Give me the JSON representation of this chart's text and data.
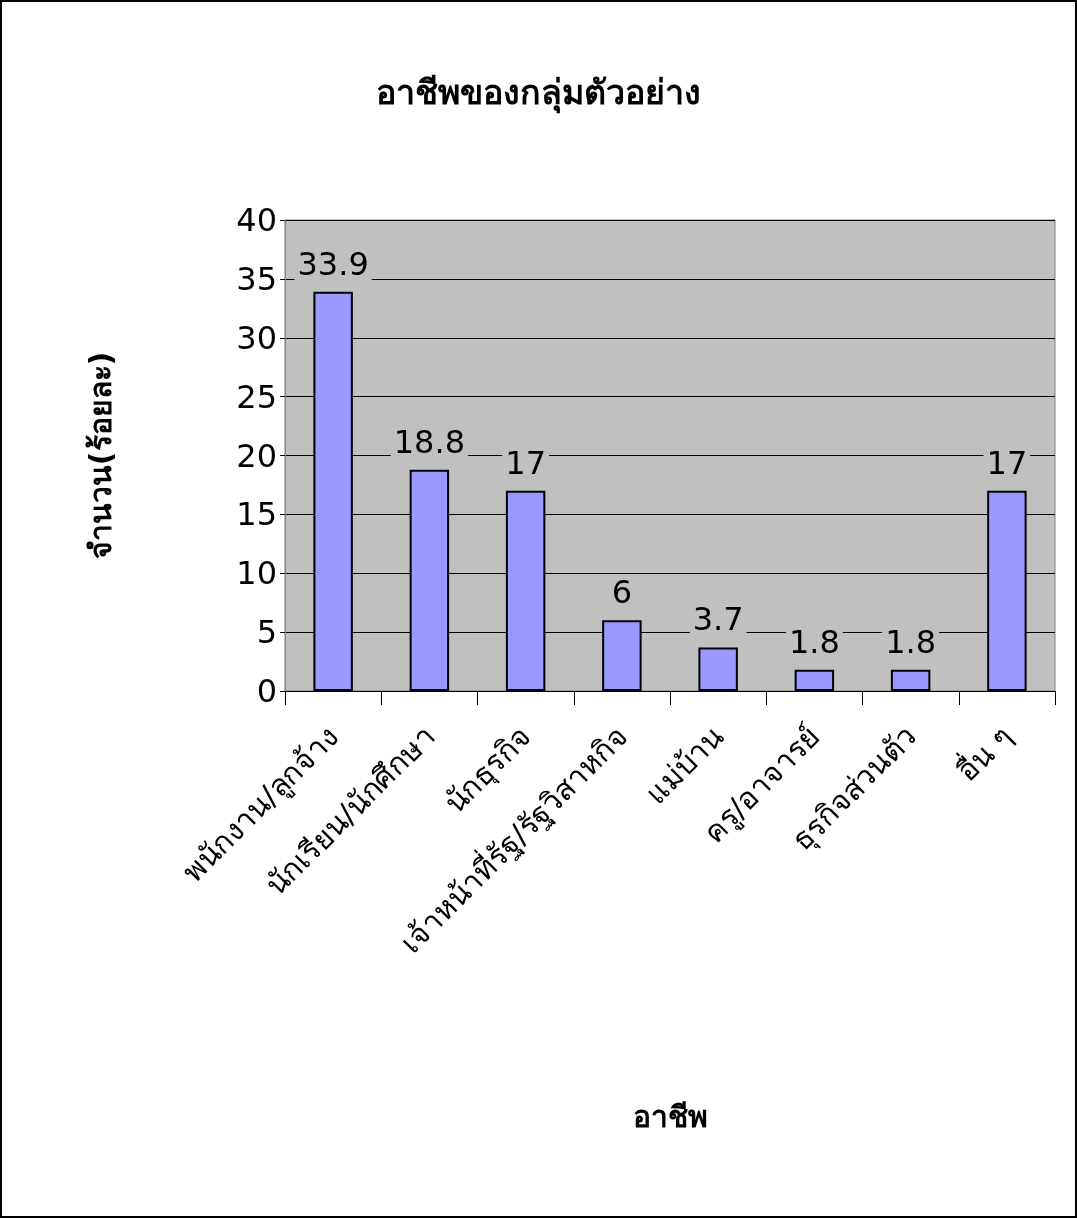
{
  "chart_data": {
    "type": "bar",
    "title": "อาชีพของกลุ่มตัวอย่าง",
    "xlabel": "อาชีพ",
    "ylabel": "จำนวน(ร้อยละ)",
    "categories": [
      "พนักงาน/ลูกจ้าง",
      "นักเรียน/นักศึกษา",
      "นักธุรกิจ",
      "เจ้าหน้าที่รัฐ/รัฐวิสาหกิจ",
      "แม่บ้าน",
      "ครู/อาจารย์",
      "ธุรกิจส่วนตัว",
      "อื่น ๆ"
    ],
    "values": [
      33.9,
      18.8,
      17,
      6,
      3.7,
      1.8,
      1.8,
      17
    ],
    "color": "#9999ff",
    "ylim": [
      0,
      40
    ],
    "yticks": [
      0,
      5,
      10,
      15,
      20,
      25,
      30,
      35,
      40
    ],
    "grid": "y",
    "data_labels": true
  }
}
